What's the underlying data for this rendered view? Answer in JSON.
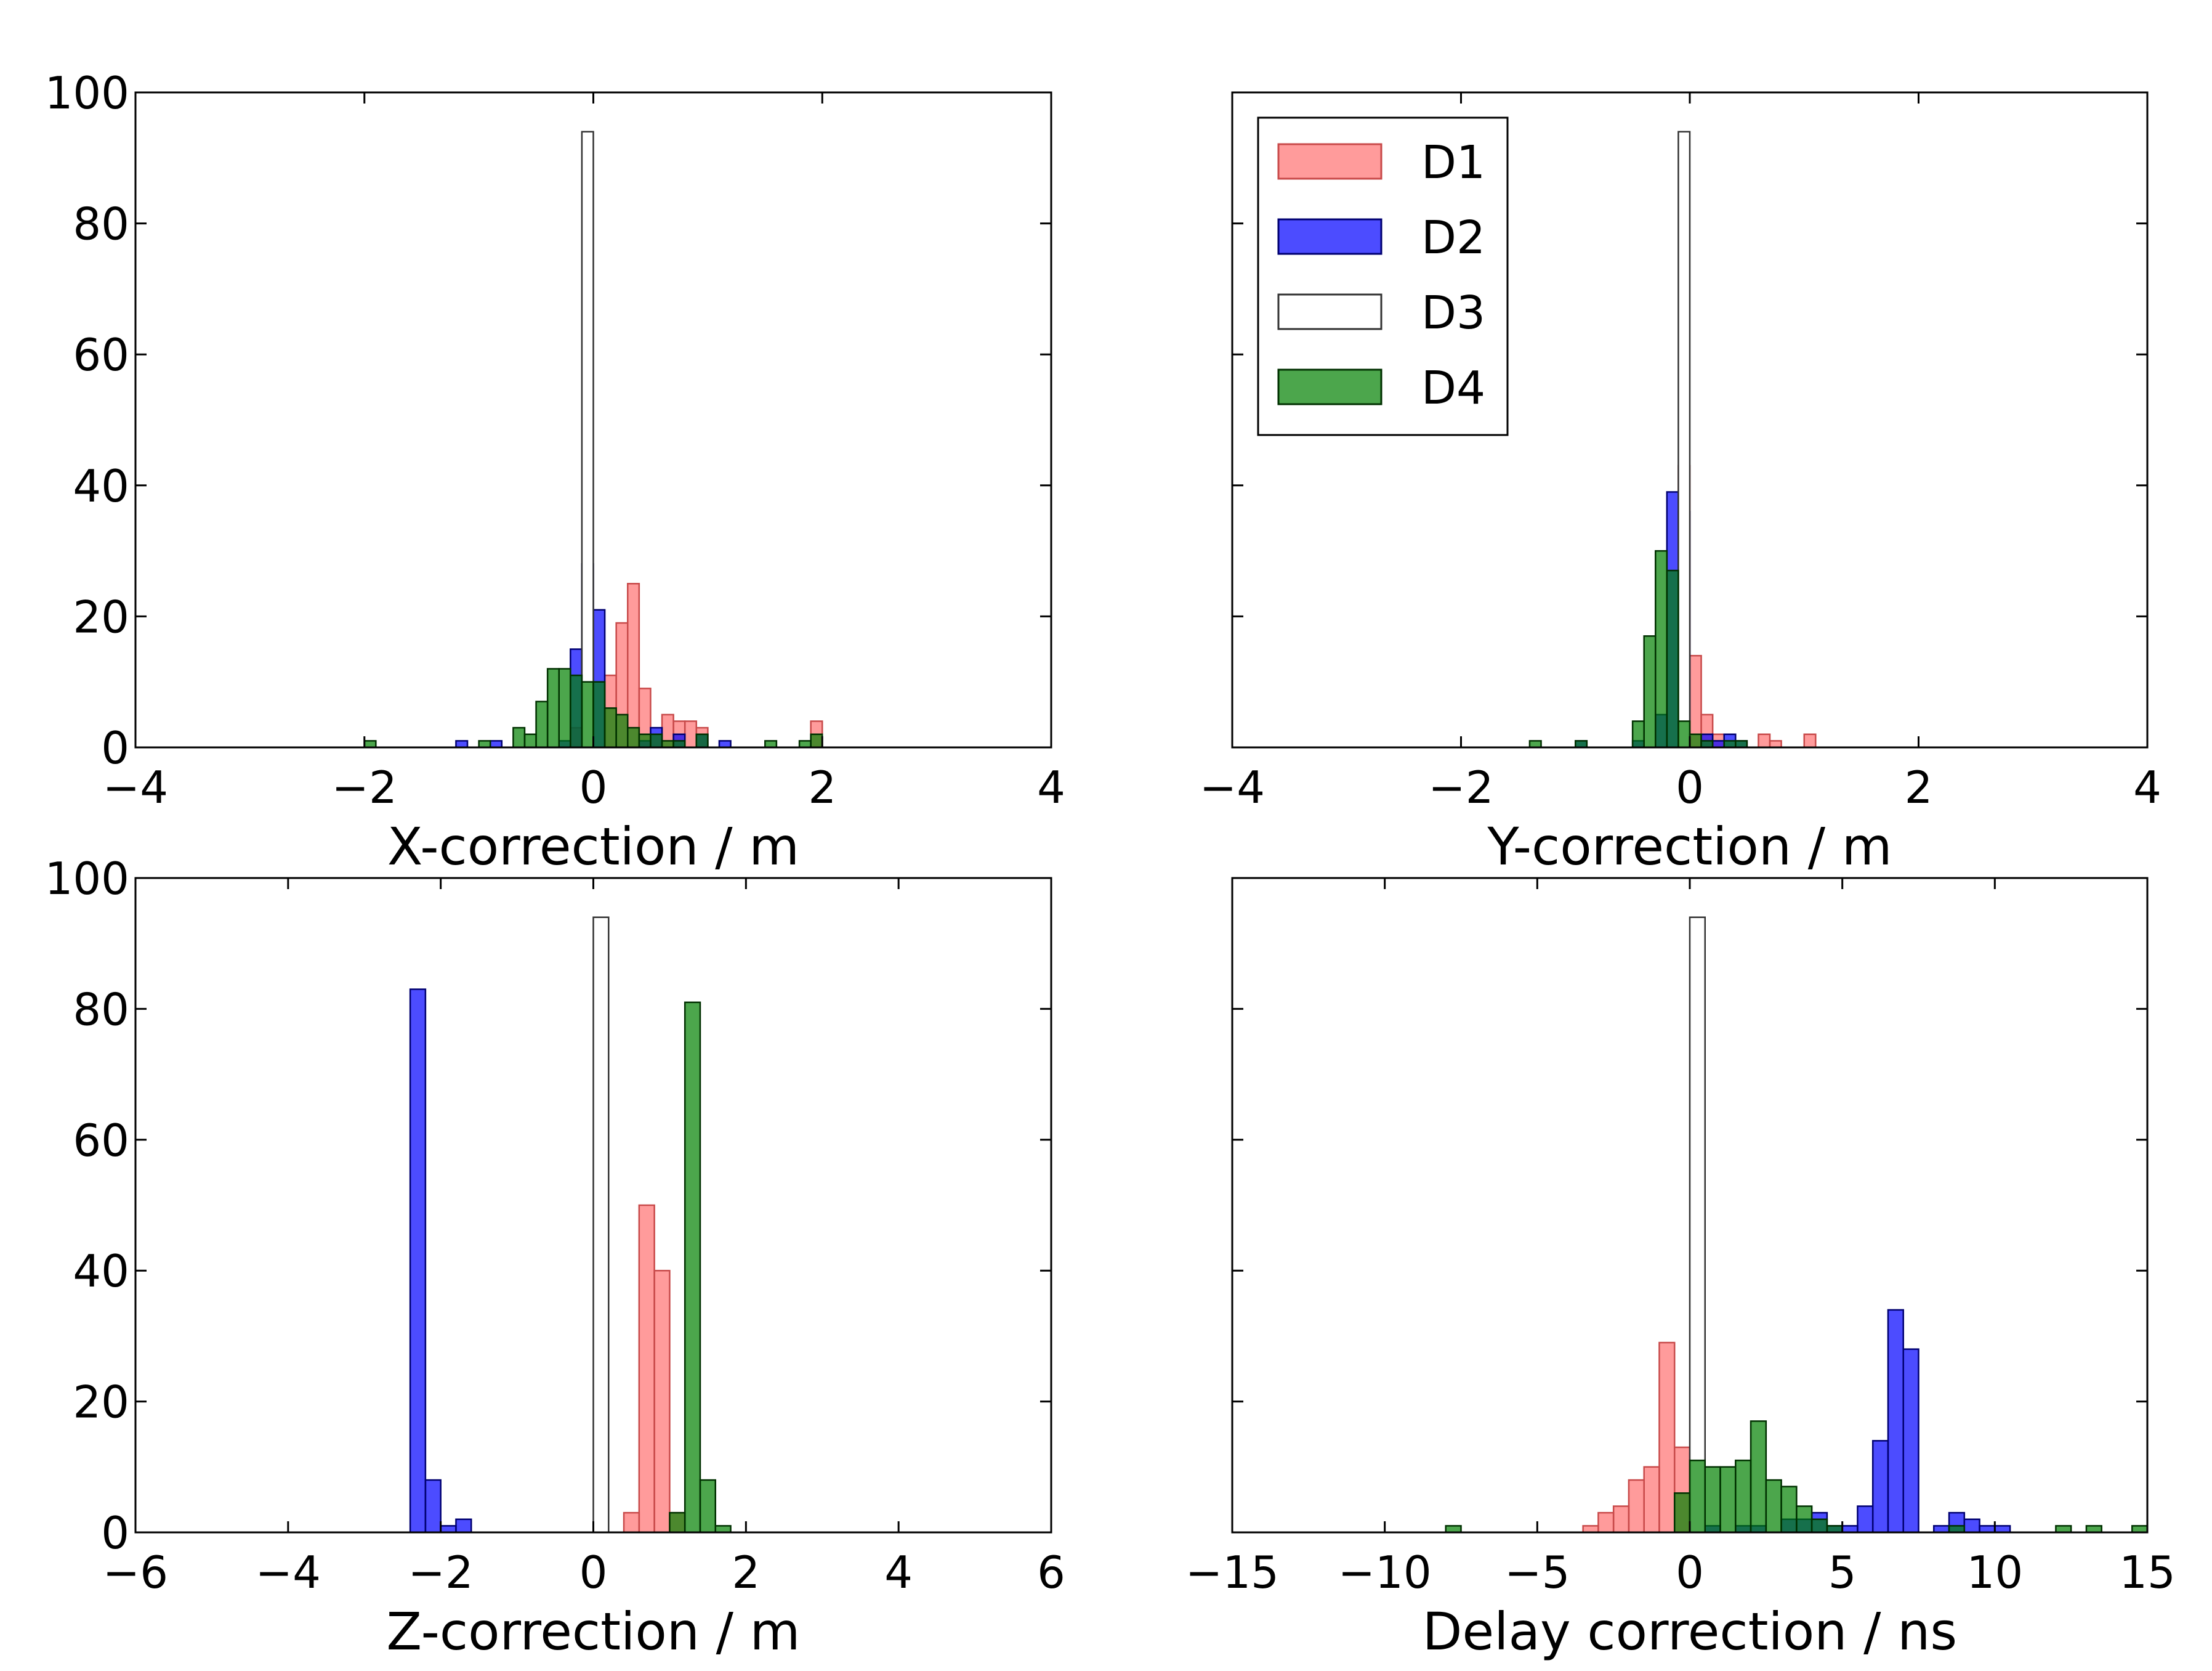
{
  "legend": {
    "placement": "upper-left of top-right panel",
    "entries": [
      {
        "label": "D1",
        "color": "#ff6666",
        "alpha": 0.65,
        "edge": "#c84a4a"
      },
      {
        "label": "D2",
        "color": "#0000ff",
        "alpha": 0.7,
        "edge": "#000070"
      },
      {
        "label": "D3",
        "color": "#ffffff",
        "alpha": 1.0,
        "edge": "#333333"
      },
      {
        "label": "D4",
        "color": "#008000",
        "alpha": 0.7,
        "edge": "#003000"
      }
    ]
  },
  "chart_data": [
    {
      "type": "histogram",
      "xlabel": "X-correction / m",
      "xlim": [
        -4,
        4
      ],
      "ylim": [
        0,
        100
      ],
      "xticks": [
        "−4",
        "−2",
        "0",
        "2",
        "4"
      ],
      "yticks": [
        "0",
        "20",
        "40",
        "60",
        "80",
        "100"
      ],
      "show_yticklabels": true,
      "bin_width": 0.1,
      "series": [
        {
          "name": "D1",
          "bins": [
            [
              -0.2,
              3
            ],
            [
              -0.1,
              10
            ],
            [
              0.1,
              11
            ],
            [
              0.2,
              19
            ],
            [
              0.3,
              25
            ],
            [
              0.4,
              9
            ],
            [
              0.5,
              2
            ],
            [
              0.6,
              5
            ],
            [
              0.7,
              4
            ],
            [
              0.8,
              4
            ],
            [
              0.9,
              3
            ],
            [
              1.9,
              4
            ]
          ]
        },
        {
          "name": "D2",
          "bins": [
            [
              -1.2,
              1
            ],
            [
              -0.9,
              1
            ],
            [
              -0.3,
              1
            ],
            [
              -0.2,
              15
            ],
            [
              -0.1,
              28
            ],
            [
              0.0,
              21
            ],
            [
              0.4,
              1
            ],
            [
              0.5,
              3
            ],
            [
              0.7,
              2
            ],
            [
              0.9,
              2
            ],
            [
              1.1,
              1
            ]
          ]
        },
        {
          "name": "D3",
          "bins": [
            [
              -0.1,
              94
            ]
          ]
        },
        {
          "name": "D4",
          "bins": [
            [
              -2.0,
              1
            ],
            [
              -1.0,
              1
            ],
            [
              -0.7,
              3
            ],
            [
              -0.6,
              2
            ],
            [
              -0.5,
              7
            ],
            [
              -0.4,
              12
            ],
            [
              -0.3,
              12
            ],
            [
              -0.2,
              11
            ],
            [
              -0.1,
              10
            ],
            [
              0.0,
              10
            ],
            [
              0.1,
              6
            ],
            [
              0.2,
              5
            ],
            [
              0.3,
              3
            ],
            [
              0.4,
              2
            ],
            [
              0.5,
              2
            ],
            [
              0.6,
              1
            ],
            [
              0.7,
              1
            ],
            [
              0.9,
              2
            ],
            [
              1.5,
              1
            ],
            [
              1.8,
              1
            ],
            [
              1.9,
              2
            ]
          ]
        }
      ]
    },
    {
      "type": "histogram",
      "xlabel": "Y-correction / m",
      "xlim": [
        -4,
        4
      ],
      "ylim": [
        0,
        100
      ],
      "xticks": [
        "−4",
        "−2",
        "0",
        "2",
        "4"
      ],
      "yticks": [
        "0",
        "20",
        "40",
        "60",
        "80",
        "100"
      ],
      "show_yticklabels": false,
      "bin_width": 0.1,
      "series": [
        {
          "name": "D1",
          "bins": [
            [
              -0.1,
              43
            ],
            [
              0.0,
              14
            ],
            [
              0.1,
              5
            ],
            [
              0.2,
              2
            ],
            [
              0.6,
              2
            ],
            [
              0.7,
              1
            ],
            [
              1.0,
              2
            ]
          ]
        },
        {
          "name": "D2",
          "bins": [
            [
              -1.0,
              1
            ],
            [
              -0.5,
              1
            ],
            [
              -0.3,
              5
            ],
            [
              -0.2,
              39
            ],
            [
              -0.1,
              36
            ],
            [
              0.1,
              2
            ],
            [
              0.2,
              1
            ],
            [
              0.3,
              2
            ],
            [
              0.4,
              1
            ]
          ]
        },
        {
          "name": "D3",
          "bins": [
            [
              -0.1,
              94
            ]
          ]
        },
        {
          "name": "D4",
          "bins": [
            [
              -1.4,
              1
            ],
            [
              -1.0,
              1
            ],
            [
              -0.5,
              4
            ],
            [
              -0.4,
              17
            ],
            [
              -0.3,
              30
            ],
            [
              -0.2,
              27
            ],
            [
              -0.1,
              4
            ],
            [
              0.0,
              2
            ],
            [
              0.1,
              1
            ],
            [
              0.3,
              1
            ],
            [
              0.4,
              1
            ]
          ]
        }
      ]
    },
    {
      "type": "histogram",
      "xlabel": "Z-correction / m",
      "xlim": [
        -6,
        6
      ],
      "ylim": [
        0,
        100
      ],
      "xticks": [
        "−6",
        "−4",
        "−2",
        "0",
        "2",
        "4",
        "6"
      ],
      "yticks": [
        "0",
        "20",
        "40",
        "60",
        "80",
        "100"
      ],
      "show_yticklabels": true,
      "bin_width": 0.2,
      "series": [
        {
          "name": "D1",
          "bins": [
            [
              0.4,
              3
            ],
            [
              0.6,
              50
            ],
            [
              0.8,
              40
            ],
            [
              1.0,
              3
            ]
          ]
        },
        {
          "name": "D2",
          "bins": [
            [
              -2.4,
              83
            ],
            [
              -2.2,
              8
            ],
            [
              -2.0,
              1
            ],
            [
              -1.8,
              2
            ]
          ]
        },
        {
          "name": "D3",
          "bins": [
            [
              0.0,
              94
            ]
          ]
        },
        {
          "name": "D4",
          "bins": [
            [
              1.0,
              3
            ],
            [
              1.2,
              81
            ],
            [
              1.4,
              8
            ],
            [
              1.6,
              1
            ]
          ]
        }
      ]
    },
    {
      "type": "histogram",
      "xlabel": "Delay correction / ns",
      "xlim": [
        -15,
        15
      ],
      "ylim": [
        0,
        100
      ],
      "xticks": [
        "−15",
        "−10",
        "−5",
        "0",
        "5",
        "10",
        "15"
      ],
      "yticks": [
        "0",
        "20",
        "40",
        "60",
        "80",
        "100"
      ],
      "show_yticklabels": false,
      "bin_width": 0.5,
      "series": [
        {
          "name": "D1",
          "bins": [
            [
              -3.5,
              1
            ],
            [
              -3.0,
              3
            ],
            [
              -2.5,
              4
            ],
            [
              -2.0,
              8
            ],
            [
              -1.5,
              10
            ],
            [
              -1.0,
              29
            ],
            [
              -0.5,
              13
            ],
            [
              0.0,
              12
            ]
          ]
        },
        {
          "name": "D2",
          "bins": [
            [
              0.0,
              1
            ],
            [
              0.5,
              1
            ],
            [
              1.5,
              1
            ],
            [
              2.0,
              1
            ],
            [
              3.0,
              2
            ],
            [
              3.5,
              2
            ],
            [
              4.0,
              3
            ],
            [
              4.5,
              1
            ],
            [
              5.0,
              1
            ],
            [
              5.5,
              4
            ],
            [
              6.0,
              14
            ],
            [
              6.5,
              34
            ],
            [
              7.0,
              28
            ],
            [
              8.0,
              1
            ],
            [
              8.5,
              3
            ],
            [
              9.0,
              2
            ],
            [
              9.5,
              1
            ],
            [
              10.0,
              1
            ]
          ]
        },
        {
          "name": "D3",
          "bins": [
            [
              0.0,
              94
            ]
          ]
        },
        {
          "name": "D4",
          "bins": [
            [
              -8.0,
              1
            ],
            [
              -0.5,
              6
            ],
            [
              0.0,
              11
            ],
            [
              0.5,
              10
            ],
            [
              1.0,
              10
            ],
            [
              1.5,
              11
            ],
            [
              2.0,
              17
            ],
            [
              2.5,
              8
            ],
            [
              3.0,
              7
            ],
            [
              3.5,
              4
            ],
            [
              4.0,
              2
            ],
            [
              4.5,
              1
            ],
            [
              8.5,
              1
            ],
            [
              12.0,
              1
            ],
            [
              13.0,
              1
            ],
            [
              14.5,
              1
            ]
          ]
        }
      ]
    }
  ]
}
